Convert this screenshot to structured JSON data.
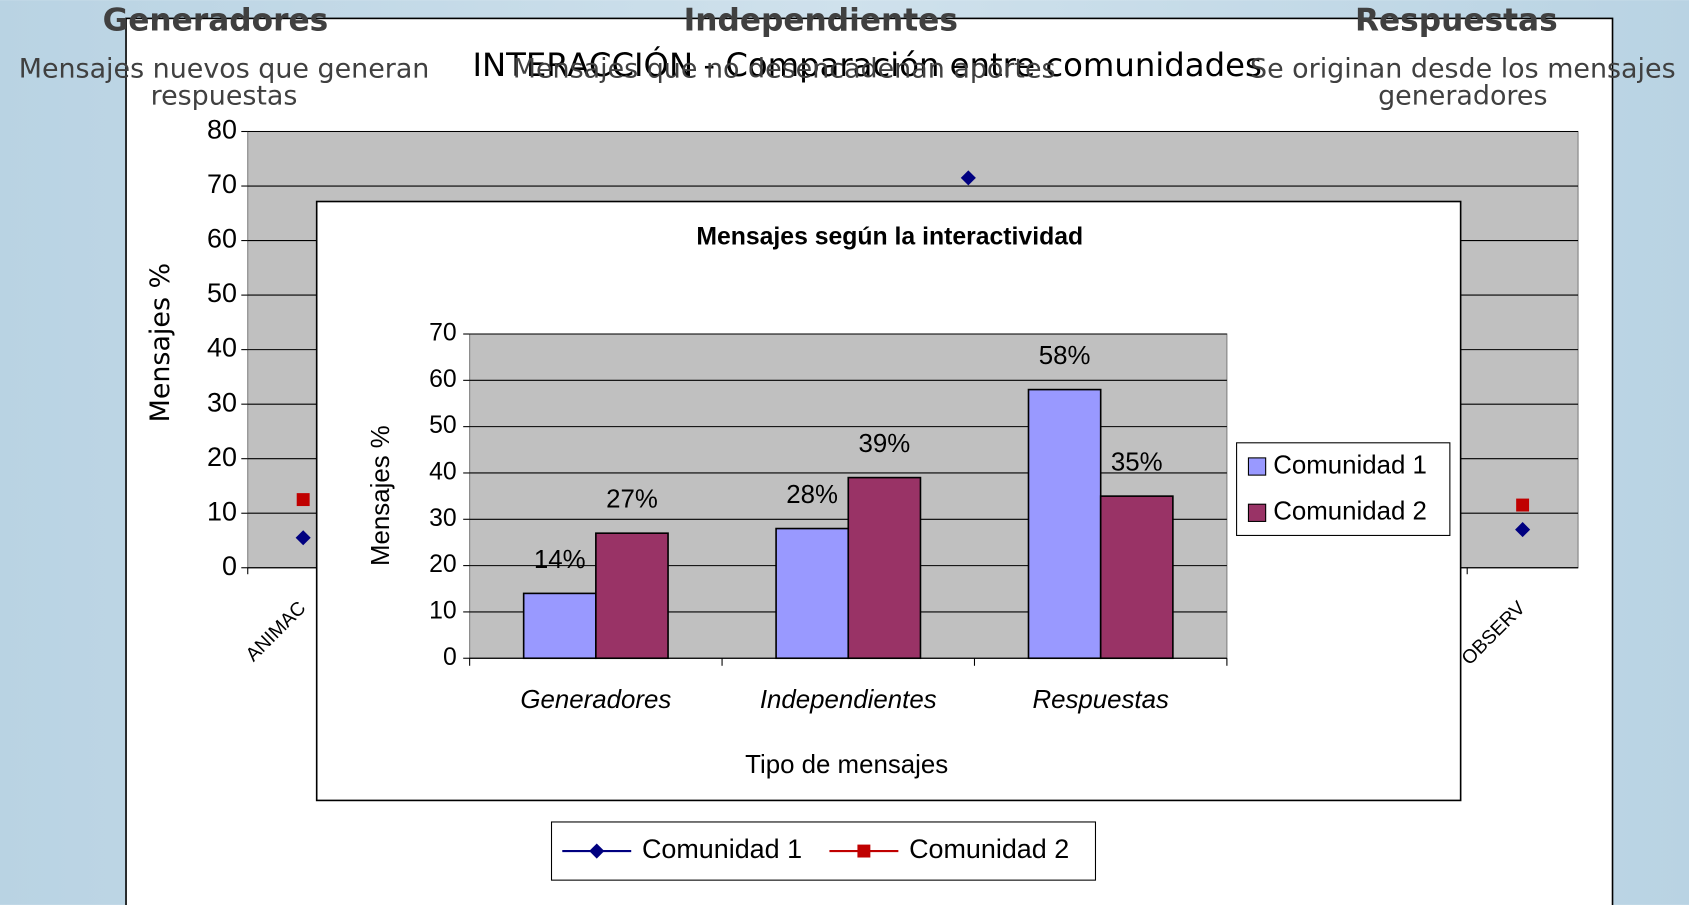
{
  "slide": {
    "headers": [
      {
        "title": "Generadores",
        "description": [
          "Mensajes nuevos que generan",
          "respuestas"
        ]
      },
      {
        "title": "Independientes",
        "description": [
          "Mensajes que no desencadenan aportes"
        ]
      },
      {
        "title": "Respuestas",
        "description": [
          "Se originan desde los mensajes",
          "generadores"
        ]
      }
    ]
  },
  "chart_data": [
    {
      "type": "line",
      "title": "INTERACCIÓN - Comparación entre comunidades",
      "y_label": "Mensajes %",
      "categories": [
        "ANIMAC",
        null,
        null,
        null,
        null,
        null,
        null,
        null,
        null,
        null,
        null,
        "OBSERV"
      ],
      "series": [
        {
          "name": "Comunidad 1",
          "color": "#000080",
          "marker": "diamond",
          "values": [
            5.5,
            null,
            null,
            null,
            null,
            null,
            71.5,
            null,
            null,
            null,
            null,
            7
          ]
        },
        {
          "name": "Comunidad 2",
          "color": "#c00000",
          "marker": "square",
          "values": [
            12.5,
            null,
            null,
            null,
            null,
            null,
            null,
            null,
            null,
            null,
            null,
            11.5
          ]
        }
      ],
      "ylim": [
        0,
        80
      ],
      "yticks": [
        0,
        10,
        20,
        30,
        40,
        50,
        60,
        70,
        80
      ],
      "grid": true,
      "legend": "bottom"
    },
    {
      "type": "bar",
      "title": "Mensajes según la interactividad",
      "x_label": "Tipo de mensajes",
      "y_label": "Mensajes %",
      "categories": [
        "Generadores",
        "Independientes",
        "Respuestas"
      ],
      "series": [
        {
          "name": "Comunidad 1",
          "color": "#9999ff",
          "values": [
            14,
            28,
            58
          ],
          "value_labels": [
            "14%",
            "28%",
            "58%"
          ]
        },
        {
          "name": "Comunidad 2",
          "color": "#993366",
          "values": [
            27,
            39,
            35
          ],
          "value_labels": [
            "27%",
            "39%",
            "35%"
          ]
        }
      ],
      "ylim": [
        0,
        70
      ],
      "yticks": [
        0,
        10,
        20,
        30,
        40,
        50,
        60,
        70
      ],
      "grid": true,
      "legend": "right"
    }
  ]
}
